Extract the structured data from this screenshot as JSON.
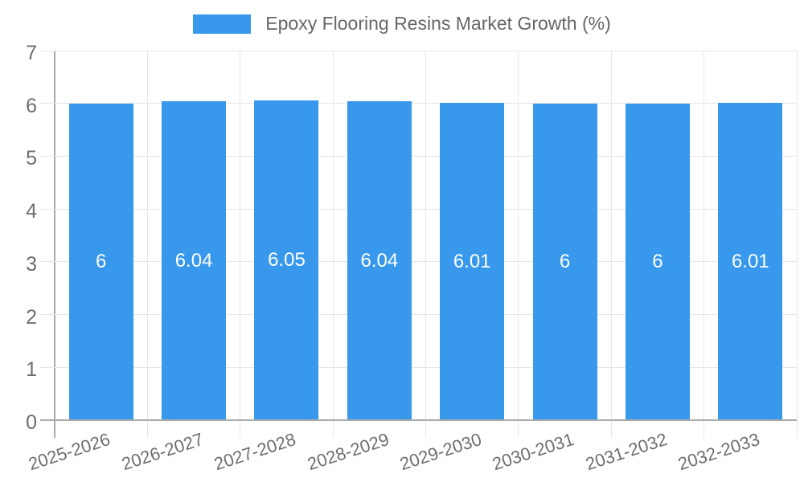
{
  "legend": {
    "label": "Epoxy Flooring Resins Market Growth (%)"
  },
  "chart_data": {
    "type": "bar",
    "title": "Epoxy Flooring Resins Market Growth (%)",
    "categories": [
      "2025-2026",
      "2026-2027",
      "2027-2028",
      "2028-2029",
      "2029-2030",
      "2030-2031",
      "2031-2032",
      "2032-2033"
    ],
    "values": [
      6,
      6.04,
      6.05,
      6.04,
      6.01,
      6,
      6,
      6.01
    ],
    "value_labels": [
      "6",
      "6.04",
      "6.05",
      "6.04",
      "6.01",
      "6",
      "6",
      "6.01"
    ],
    "xlabel": "",
    "ylabel": "",
    "ylim": [
      0,
      7
    ],
    "ytick_step": 1,
    "yticks": [
      0,
      1,
      2,
      3,
      4,
      5,
      6,
      7
    ],
    "grid": true,
    "legend_position": "top",
    "bar_color": "#3898ec",
    "value_label_color": "#ffffff"
  },
  "colors": {
    "bar": "#3898ec",
    "axis_line": "#aaaaaa",
    "grid_line": "#e6e6e6",
    "y_tick_label": "#6e6e6e",
    "x_tick_label": "#6e6e6e",
    "legend_text": "#666666",
    "background": "#ffffff"
  }
}
